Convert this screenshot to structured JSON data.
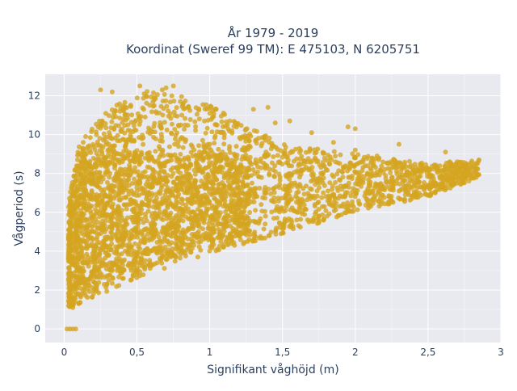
{
  "chart_data": {
    "type": "scatter",
    "title_line1": "År 1979 - 2019",
    "title_line2": "Koordinat (Sweref 99 TM): E 475103, N 6205751",
    "xlabel": "Signifikant våghöjd (m)",
    "ylabel": "Vågperiod (s)",
    "xlim": [
      -0.13,
      3.0
    ],
    "ylim": [
      -0.7,
      13.1
    ],
    "xticks": [
      0,
      0.5,
      1,
      1.5,
      2,
      2.5,
      3
    ],
    "xtick_labels": [
      "0",
      "0,5",
      "1",
      "1,5",
      "2",
      "2,5",
      "3"
    ],
    "yticks": [
      0,
      2,
      4,
      6,
      8,
      10,
      12
    ],
    "ytick_labels": [
      "0",
      "2",
      "4",
      "6",
      "8",
      "10",
      "12"
    ],
    "grid": true,
    "marker_color": "#D4A520",
    "plot_background": "#E9E9F0",
    "point_cloud_envelope": {
      "description_of_shape": "dense band",
      "lower_edge": [
        [
          0.03,
          1.1
        ],
        [
          0.2,
          1.6
        ],
        [
          0.5,
          2.6
        ],
        [
          1.0,
          3.9
        ],
        [
          1.5,
          4.9
        ],
        [
          2.0,
          6.0
        ],
        [
          2.5,
          6.8
        ],
        [
          2.85,
          7.8
        ]
      ],
      "upper_edge": [
        [
          0.03,
          6.5
        ],
        [
          0.1,
          9.5
        ],
        [
          0.3,
          11.3
        ],
        [
          0.6,
          12.5
        ],
        [
          1.0,
          11.5
        ],
        [
          1.5,
          9.5
        ],
        [
          2.0,
          9.0
        ],
        [
          2.5,
          8.5
        ],
        [
          2.85,
          8.7
        ]
      ]
    },
    "outlier_points": [
      [
        0.02,
        0.0
      ],
      [
        0.04,
        0.0
      ],
      [
        0.06,
        0.0
      ],
      [
        0.08,
        0.0
      ],
      [
        0.25,
        12.3
      ],
      [
        0.33,
        12.2
      ],
      [
        0.52,
        12.5
      ],
      [
        0.7,
        12.4
      ],
      [
        0.75,
        12.5
      ],
      [
        0.55,
        12.1
      ],
      [
        0.85,
        11.4
      ],
      [
        1.3,
        11.3
      ],
      [
        1.4,
        11.4
      ],
      [
        1.45,
        10.6
      ],
      [
        1.55,
        10.7
      ],
      [
        1.7,
        10.1
      ],
      [
        1.95,
        10.4
      ],
      [
        2.0,
        10.3
      ],
      [
        2.3,
        9.5
      ],
      [
        2.62,
        9.1
      ],
      [
        2.65,
        8.6
      ],
      [
        2.75,
        8.3
      ],
      [
        2.85,
        8.7
      ],
      [
        2.6,
        7.7
      ],
      [
        2.55,
        7.5
      ],
      [
        2.0,
        9.2
      ],
      [
        1.85,
        9.6
      ],
      [
        2.15,
        8.9
      ],
      [
        0.05,
        1.2
      ],
      [
        0.1,
        1.3
      ],
      [
        0.06,
        1.1
      ]
    ]
  }
}
